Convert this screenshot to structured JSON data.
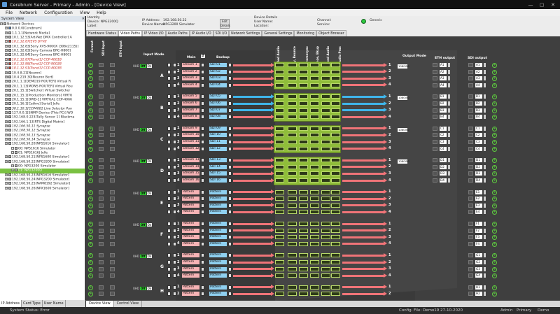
{
  "window": {
    "title": "Cerebrum Server - Primary - Admin - [Device View]",
    "buttons": [
      "—",
      "▢",
      "✕"
    ]
  },
  "menu": [
    "File",
    "Network",
    "Configuration",
    "View",
    "Help"
  ],
  "system_view": {
    "header": "System View",
    "root": "Network Devices",
    "nodes": [
      {
        "t": "0.0.0.0[Cerebrum]",
        "c": "",
        "ic": "b"
      },
      {
        "t": "1.1.1.1[Network Media]",
        "c": "",
        "ic": "g"
      },
      {
        "t": "10.1.12.53[Art-Net DMX Controller] A",
        "c": "",
        "ic": "g"
      },
      {
        "t": "10.1.32.87[EVS DYVI]",
        "c": "red it",
        "ic": ""
      },
      {
        "t": "10.1.32.83[Sony XVS-9000X (306x2115)]",
        "c": "",
        "ic": "g"
      },
      {
        "t": "10.1.32.83[Sony Camera BRC-H800]",
        "c": "",
        "ic": "g"
      },
      {
        "t": "10.1.32.84[Sony Camera BRC-H800]",
        "c": "",
        "ic": "g"
      },
      {
        "t": "10.1.32.87[Panel1] CCP-4001B",
        "c": "red it",
        "ic": ""
      },
      {
        "t": "10.1.32.88[Panel2] CCP-8002B",
        "c": "red it",
        "ic": ""
      },
      {
        "t": "10.1.32.91[Panel3] CCP-4003B",
        "c": "red it",
        "ic": ""
      },
      {
        "t": "10.4.8.21[Neuron]",
        "c": "",
        "ic": "g"
      },
      {
        "t": "10.4.219.30[Neuron Bert]",
        "c": "",
        "ic": "g"
      },
      {
        "t": "20.1.1.1[DEMO19 ROUTER] Virtual R",
        "c": "",
        "ic": "g"
      },
      {
        "t": "20.1.1.13[MONS ROUTER] Virtual Rou",
        "c": "",
        "ic": "g"
      },
      {
        "t": "20.1.15.1[Switcher] Virtual Switcher",
        "c": "",
        "ic": "g"
      },
      {
        "t": "20.1.15.1[Production Monitors] VIRTU",
        "c": "",
        "ic": "g"
      },
      {
        "t": "20.1.15.1[OPID-1] VIRTUAL CCP-4066",
        "c": "",
        "ic": "g"
      },
      {
        "t": "20.1.16.1[Cathro] Serial] Jelle",
        "c": "",
        "ic": "g"
      },
      {
        "t": "30.1.10.1[CCP4001 Line Selector Pan",
        "c": "it",
        "ic": "g"
      },
      {
        "t": "127.0.0.1[SNMP Device (This PC)] WO",
        "c": "",
        "ic": "g"
      },
      {
        "t": "192.168.0.223[Tally Server 1] Blackma",
        "c": "",
        "ic": "g"
      },
      {
        "t": "192.166.1.13[RTS Digital Matrix]",
        "c": "",
        "ic": "g"
      },
      {
        "t": "192.166.50.11 Synapse",
        "c": "it",
        "ic": "g"
      },
      {
        "t": "192.168.50.12 Synapse",
        "c": "it",
        "ic": "g"
      },
      {
        "t": "192.168.50.13 Synapse",
        "c": "it",
        "ic": "g"
      },
      {
        "t": "192.168.50.14 Synapse",
        "c": "it",
        "ic": "g"
      },
      {
        "t": "192.168.50.20[NPS1616 Simulator]",
        "c": "",
        "ic": "g"
      },
      {
        "t": "00: NPS1616 Simulator",
        "c": "",
        "ic": "g"
      },
      {
        "t": "01: NPS1616J Jelle",
        "c": "",
        "ic": "g"
      },
      {
        "t": "192.168.50.21[NPS1600 Simulator]",
        "c": "",
        "ic": "g"
      },
      {
        "t": "192.168.50.22[NPG3200 Simulator]",
        "c": "",
        "ic": "g"
      },
      {
        "t": "00: NPG3200 Simulator",
        "c": "",
        "ic": "g"
      },
      {
        "t": "01: NPG3200Q",
        "c": "sel",
        "ic": "g"
      },
      {
        "t": "192.168.50.23[NPS1616 Simulator]",
        "c": "",
        "ic": "g"
      },
      {
        "t": "192.168.50.24[NPG3200 Simulator]",
        "c": "",
        "ic": "g"
      },
      {
        "t": "192.168.50.25[NAM8192 Simulator]",
        "c": "",
        "ic": "g"
      },
      {
        "t": "192.168.50.26[NPX1600 Simulator]",
        "c": "",
        "ic": "g"
      }
    ],
    "bottom_tabs": [
      "IP Address",
      "Card Type",
      "User Name"
    ]
  },
  "identity": {
    "label_identity": "Identity",
    "device": "Device: NPG3200Q",
    "label": "Label:",
    "ip": "IP Address:",
    "ip_value": "192.168.50.22",
    "device_name": "Device Name:",
    "device_name_value": "NPG3200 Simulator",
    "details_btn": "Edit Details",
    "device_details": "Device Details",
    "user_name": "User Name:",
    "location": "Location:",
    "channel": "Channel:",
    "service": "Service:",
    "generic": "Generic"
  },
  "tabs": [
    "Hardware Status",
    "Video Paths",
    "IP Video I/O",
    "Audio Paths",
    "IP Audio I/O",
    "SDI I/O",
    "Network Settings",
    "General Settings",
    "Monitoring",
    "Object Browser"
  ],
  "active_tab": "Video Paths",
  "headers": {
    "format": "Format",
    "sdi_input": "SDI Input",
    "eth_input": "ETH input",
    "input_mode": "Input Mode",
    "main": "Main",
    "backup": "Backup",
    "proc": [
      "Embedded Audio",
      "Key, Bounce",
      "Framesync",
      "Freeze, Bkup",
      "Embed Audio",
      "Audio Proc"
    ],
    "output_mode": "Output Mode",
    "eth_output": "ETH output",
    "sdi_output": "SDI output",
    "swap_icon": "⇄"
  },
  "groups": [
    {
      "id": "A",
      "mode": "UHD",
      "off": "Off",
      "on": "On",
      "main": [
        "Stream 1",
        "Stream 2",
        "Stream 3",
        "Stream 4"
      ],
      "backup": [
        "SDI 01",
        "SDI 02",
        "SDI 03",
        "SDI 04"
      ],
      "arrow": [
        "r",
        "r",
        "r",
        "r"
      ],
      "outs": [
        "A1",
        "A2",
        "A3",
        "A4"
      ],
      "sdi": [
        "A1",
        "A2",
        "A3",
        "A4"
      ],
      "mode_out": "1080i50"
    },
    {
      "id": "B",
      "mode": "UHD",
      "off": "Off",
      "on": "On",
      "main": [
        "Stream 5",
        "Stream 6",
        "Stream 7",
        "Stream 8"
      ],
      "backup": [
        "SDI 05",
        "SDI 06",
        "SDI 07",
        "SDI 08"
      ],
      "arrow": [
        "c",
        "c",
        "c",
        "r"
      ],
      "outs": [
        "B1",
        "B2",
        "B3",
        "B4"
      ],
      "sdi": [
        "B1",
        "B2",
        "B3",
        "B4"
      ],
      "mode_out": "1080i50"
    },
    {
      "id": "C",
      "mode": "UHD",
      "off": "Off",
      "on": "On",
      "main": [
        "Stream 9",
        "Stream 10",
        "Stream 11",
        "Stream 12"
      ],
      "backup": [
        "SDI 09",
        "SDI 10",
        "SDI 11",
        "SDI 12"
      ],
      "arrow": [
        "r",
        "r",
        "r",
        "r"
      ],
      "outs": [
        "C1",
        "C2",
        "C3",
        "C4"
      ],
      "sdi": [
        "C1",
        "C2",
        "C3",
        "C4"
      ],
      "mode_out": "1080i50"
    },
    {
      "id": "D",
      "mode": "UHD",
      "off": "Off",
      "on": "On",
      "main": [
        "Stream 13",
        "Stream 14",
        "Stream 15",
        "Stream 16"
      ],
      "backup": [
        "SDI 13",
        "SDI 14",
        "SDI 15",
        "SDI 16"
      ],
      "arrow": [
        "r",
        "r",
        "r",
        "r"
      ],
      "outs": [
        "D1",
        "D2",
        "D3",
        "D4"
      ],
      "sdi": [
        "D1",
        "D2",
        "D3",
        "D4"
      ],
      "mode_out": "1080i50"
    },
    {
      "id": "E",
      "mode": "UHD",
      "off": "Off",
      "on": "On",
      "main": [
        "Pattern",
        "Pattern",
        "Pattern",
        "Pattern"
      ],
      "backup": [
        "Pattern",
        "Pattern",
        "Pattern",
        "Pattern"
      ],
      "arrow": [
        "r",
        "r",
        "r",
        "r"
      ],
      "outs": [
        "",
        "",
        "",
        ""
      ],
      "sdi": [
        "E1",
        "E2",
        "E3",
        "E4"
      ],
      "mode_out": ""
    },
    {
      "id": "F",
      "mode": "UHD",
      "off": "Off",
      "on": "On",
      "main": [
        "Pattern",
        "Pattern",
        "Pattern",
        "Pattern"
      ],
      "backup": [
        "Pattern",
        "Pattern",
        "Pattern",
        "Pattern"
      ],
      "arrow": [
        "r",
        "r",
        "r",
        "r"
      ],
      "outs": [
        "",
        "",
        "",
        ""
      ],
      "sdi": [
        "F1",
        "F2",
        "F3",
        "F4"
      ],
      "mode_out": ""
    },
    {
      "id": "G",
      "mode": "UHD",
      "off": "Off",
      "on": "On",
      "main": [
        "Pattern",
        "Pattern",
        "Pattern",
        "Pattern"
      ],
      "backup": [
        "Pattern",
        "Pattern",
        "Pattern",
        "Pattern"
      ],
      "arrow": [
        "r",
        "r",
        "r",
        "r"
      ],
      "outs": [
        "",
        "",
        "",
        ""
      ],
      "sdi": [
        "G1",
        "G2",
        "G3",
        "G4"
      ],
      "mode_out": ""
    },
    {
      "id": "H",
      "mode": "UHD",
      "off": "Off",
      "on": "On",
      "main": [
        "Pattern",
        "Pattern"
      ],
      "backup": [
        "Pattern",
        "Pattern"
      ],
      "arrow": [
        "r",
        "r"
      ],
      "outs": [
        "",
        ""
      ],
      "sdi": [
        "H1",
        "H2"
      ],
      "mode_out": ""
    }
  ],
  "bottom_tabs": [
    "Device View",
    "Control View"
  ],
  "status": {
    "system_status": "System Status: Error",
    "config": "Config. File: Demo19 27-10-2020",
    "user": "Admin",
    "role": "Primary",
    "demo": "Demo"
  },
  "colors": {
    "main_bg": "#f6b3b5",
    "backup_bg": "#8fd0f0",
    "arrow_red": "#f07478",
    "arrow_cyan": "#3fb5ea",
    "proc_green": "#8fbd3a",
    "selected": "#7ac142"
  }
}
